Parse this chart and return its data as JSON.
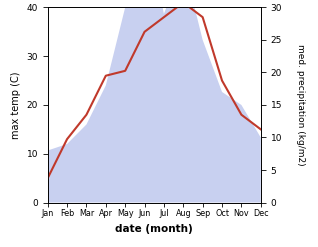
{
  "months": [
    "Jan",
    "Feb",
    "Mar",
    "Apr",
    "May",
    "Jun",
    "Jul",
    "Aug",
    "Sep",
    "Oct",
    "Nov",
    "Dec"
  ],
  "temperature": [
    5,
    13,
    18,
    26,
    27,
    35,
    38,
    41,
    38,
    25,
    18,
    15
  ],
  "precipitation": [
    8,
    9,
    12,
    18,
    30,
    44,
    29,
    37,
    25,
    17,
    15,
    10
  ],
  "temp_color": "#c0392b",
  "precip_color_fill": "#c8d0f0",
  "xlabel": "date (month)",
  "ylabel_left": "max temp (C)",
  "ylabel_right": "med. precipitation (kg/m2)",
  "ylim_left": [
    0,
    40
  ],
  "ylim_right": [
    0,
    30
  ],
  "background_color": "#ffffff"
}
